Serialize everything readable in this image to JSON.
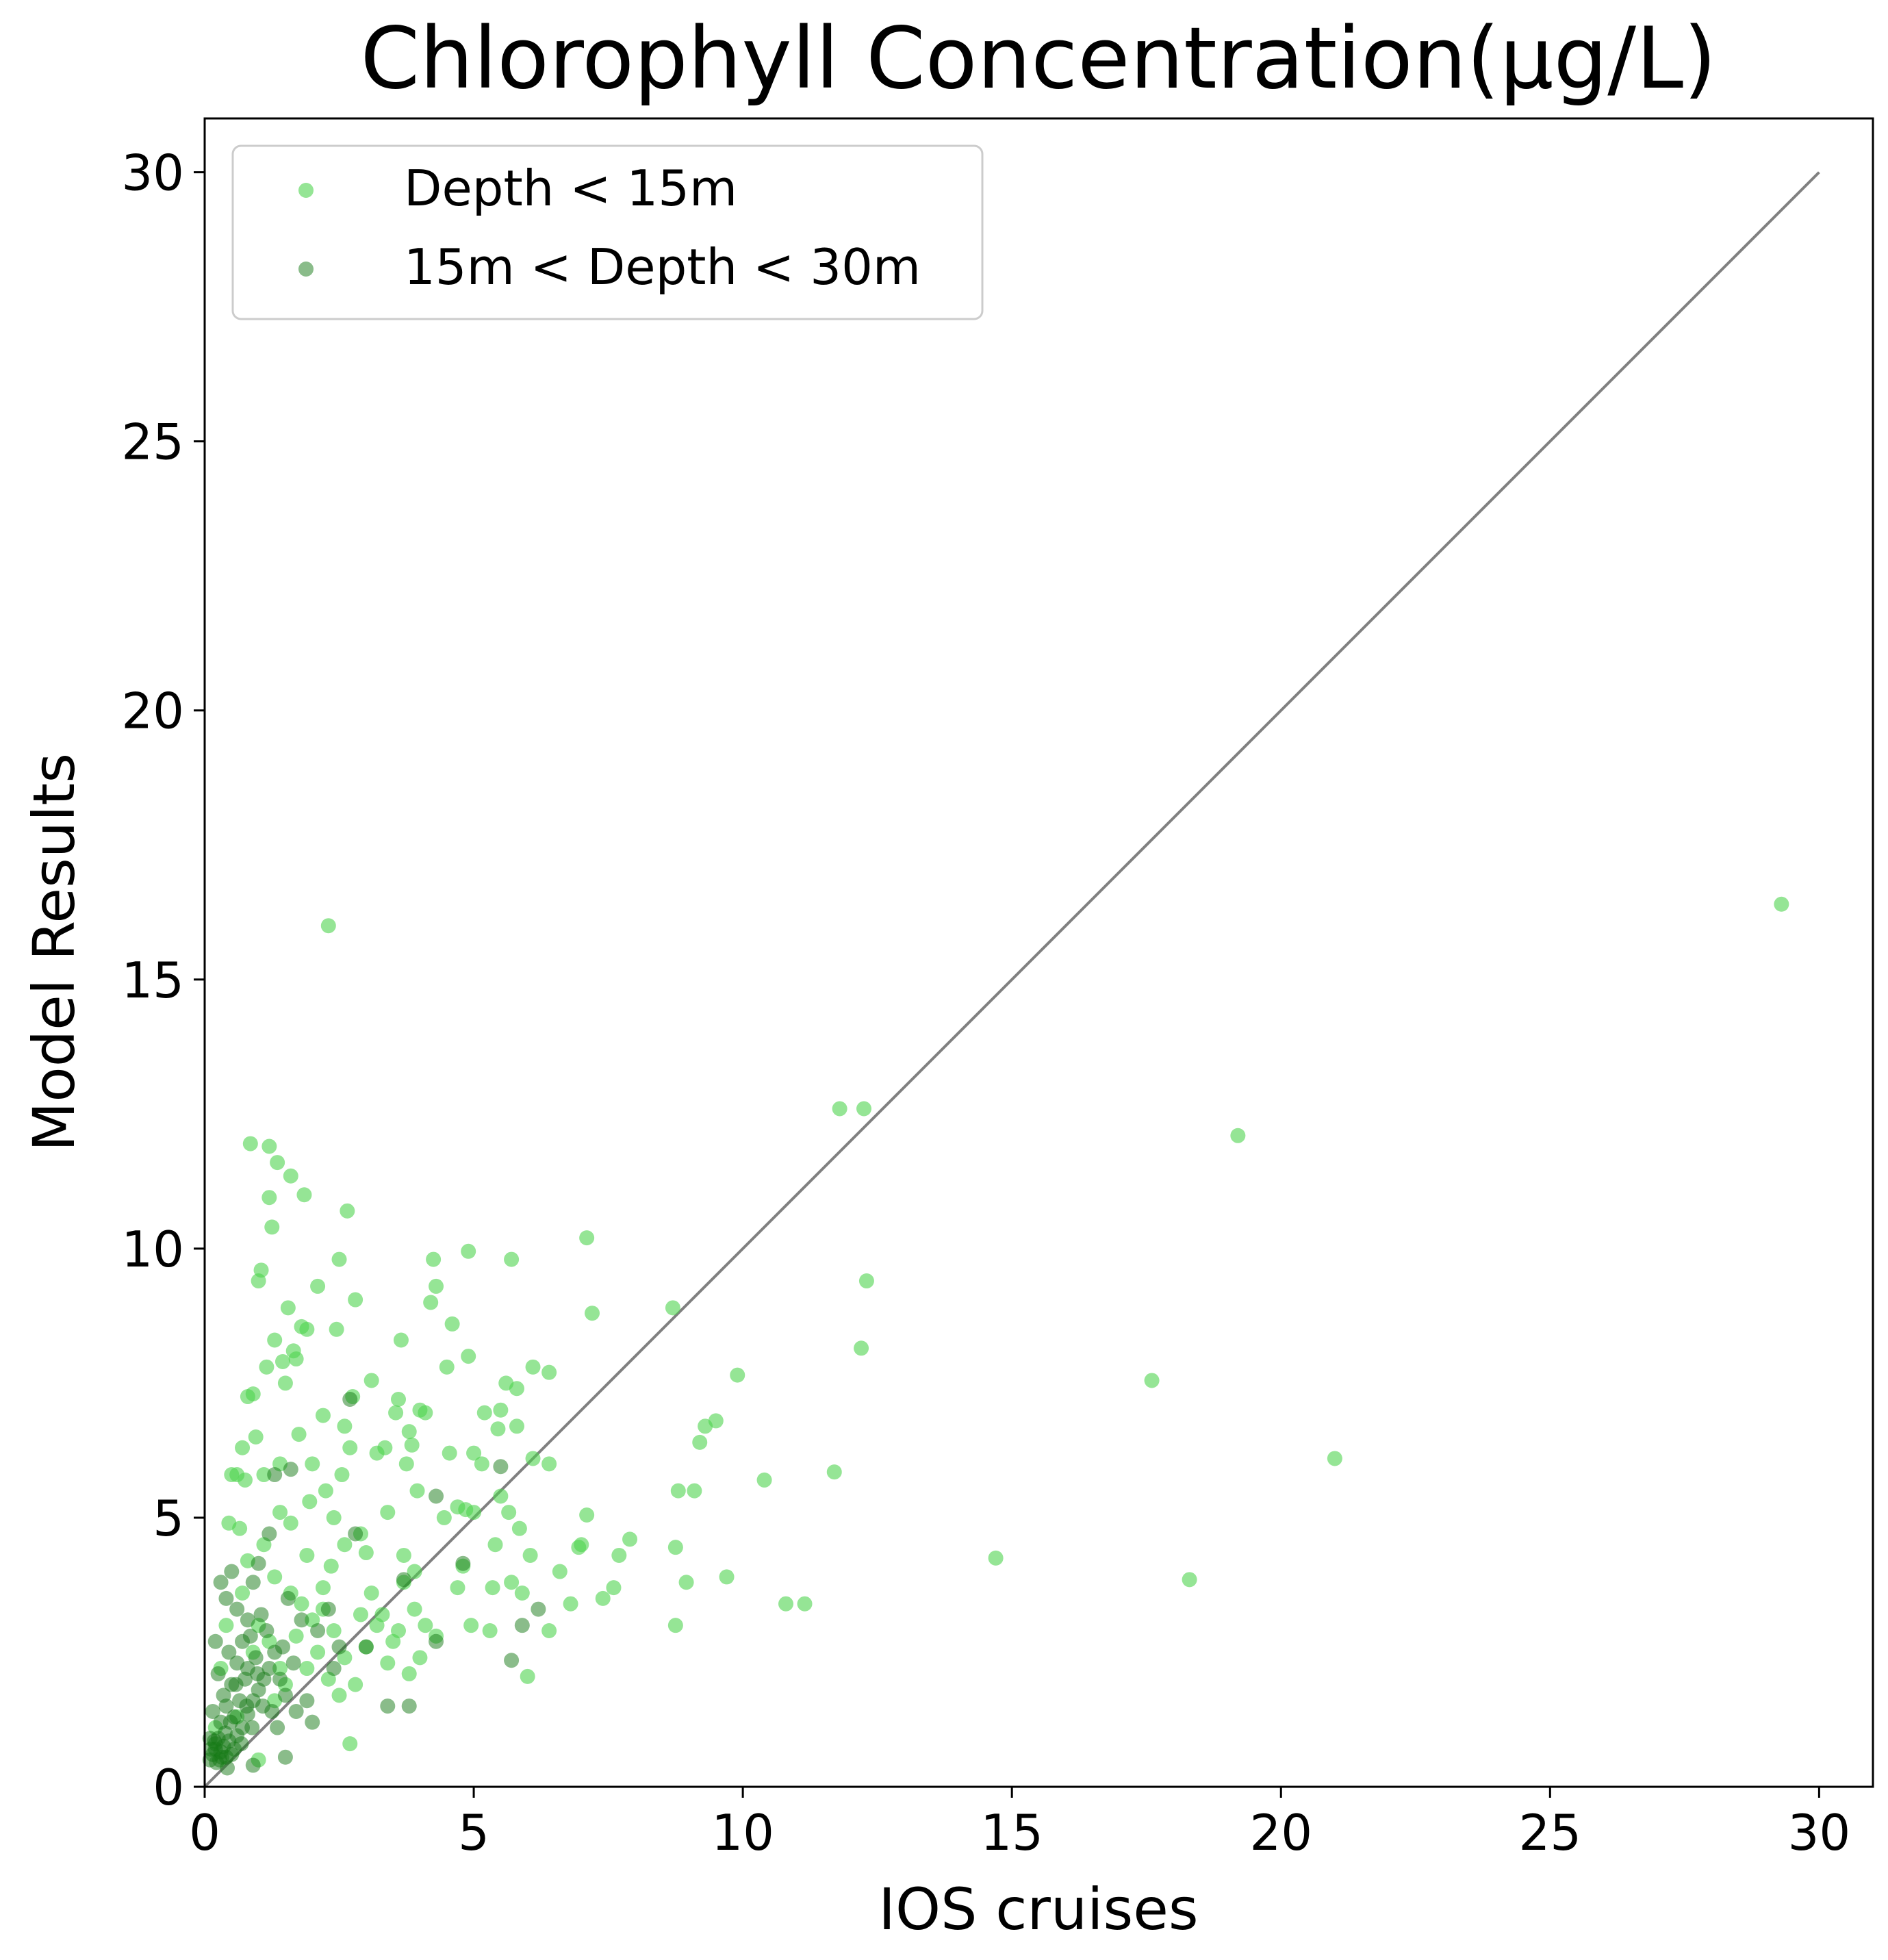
{
  "chart_data": {
    "type": "scatter",
    "title": "Chlorophyll Concentration(μg/L)",
    "xlabel": "IOS cruises",
    "ylabel": "Model Results",
    "xlim": [
      0,
      31
    ],
    "ylim": [
      0,
      31
    ],
    "xticks": [
      0,
      5,
      10,
      15,
      20,
      25,
      30
    ],
    "yticks": [
      0,
      5,
      10,
      15,
      20,
      25,
      30
    ],
    "grid": false,
    "legend_position": "top-left",
    "reference_line": {
      "x": [
        0,
        30
      ],
      "y": [
        0,
        30
      ],
      "color": "#808080"
    },
    "series": [
      {
        "name": "Depth < 15m",
        "color": "#4fd44f",
        "alpha": 0.6,
        "points": [
          [
            29.3,
            16.4
          ],
          [
            21.0,
            6.1
          ],
          [
            19.2,
            12.1
          ],
          [
            18.3,
            3.85
          ],
          [
            17.6,
            7.55
          ],
          [
            14.7,
            4.25
          ],
          [
            12.3,
            9.4
          ],
          [
            12.25,
            12.6
          ],
          [
            12.2,
            8.15
          ],
          [
            11.8,
            12.6
          ],
          [
            11.7,
            5.85
          ],
          [
            11.15,
            3.4
          ],
          [
            10.8,
            3.4
          ],
          [
            10.4,
            5.7
          ],
          [
            9.9,
            7.65
          ],
          [
            9.7,
            3.9
          ],
          [
            9.5,
            6.8
          ],
          [
            9.3,
            6.7
          ],
          [
            9.2,
            6.4
          ],
          [
            9.1,
            5.5
          ],
          [
            8.95,
            3.8
          ],
          [
            8.8,
            5.5
          ],
          [
            8.75,
            4.45
          ],
          [
            8.75,
            3.0
          ],
          [
            8.7,
            8.9
          ],
          [
            7.9,
            4.6
          ],
          [
            7.7,
            4.3
          ],
          [
            7.6,
            3.7
          ],
          [
            7.4,
            3.5
          ],
          [
            7.2,
            8.8
          ],
          [
            7.1,
            10.2
          ],
          [
            7.1,
            5.05
          ],
          [
            7.0,
            4.5
          ],
          [
            6.95,
            4.45
          ],
          [
            6.8,
            3.4
          ],
          [
            6.6,
            4.0
          ],
          [
            6.4,
            7.7
          ],
          [
            6.4,
            6.0
          ],
          [
            6.4,
            2.9
          ],
          [
            6.1,
            7.8
          ],
          [
            6.1,
            6.1
          ],
          [
            6.05,
            4.3
          ],
          [
            6.0,
            2.05
          ],
          [
            5.9,
            3.6
          ],
          [
            5.85,
            4.8
          ],
          [
            5.8,
            6.7
          ],
          [
            5.8,
            7.4
          ],
          [
            5.7,
            9.8
          ],
          [
            5.7,
            3.8
          ],
          [
            5.65,
            5.1
          ],
          [
            5.6,
            7.5
          ],
          [
            5.5,
            7.0
          ],
          [
            5.5,
            5.4
          ],
          [
            5.45,
            6.65
          ],
          [
            5.4,
            4.5
          ],
          [
            5.35,
            3.7
          ],
          [
            5.3,
            2.9
          ],
          [
            5.2,
            6.95
          ],
          [
            5.15,
            6.0
          ],
          [
            5.0,
            5.1
          ],
          [
            5.0,
            6.2
          ],
          [
            4.95,
            3.0
          ],
          [
            4.9,
            9.95
          ],
          [
            4.9,
            8.0
          ],
          [
            4.85,
            5.15
          ],
          [
            4.8,
            4.1
          ],
          [
            4.7,
            3.7
          ],
          [
            4.7,
            5.2
          ],
          [
            4.6,
            8.6
          ],
          [
            4.55,
            6.2
          ],
          [
            4.5,
            7.8
          ],
          [
            4.45,
            5.0
          ],
          [
            4.3,
            9.3
          ],
          [
            4.25,
            9.8
          ],
          [
            4.2,
            9.0
          ],
          [
            4.1,
            6.95
          ],
          [
            4.0,
            7.0
          ],
          [
            3.95,
            5.5
          ],
          [
            3.9,
            4.0
          ],
          [
            3.85,
            6.35
          ],
          [
            3.8,
            6.6
          ],
          [
            3.75,
            6.0
          ],
          [
            3.7,
            3.8
          ],
          [
            3.65,
            8.3
          ],
          [
            3.6,
            7.2
          ],
          [
            3.55,
            6.95
          ],
          [
            3.4,
            5.1
          ],
          [
            3.35,
            6.3
          ],
          [
            3.2,
            6.2
          ],
          [
            3.1,
            7.55
          ],
          [
            3.0,
            4.35
          ],
          [
            2.9,
            3.2
          ],
          [
            2.8,
            9.05
          ],
          [
            2.75,
            7.25
          ],
          [
            2.7,
            6.3
          ],
          [
            2.65,
            10.7
          ],
          [
            2.6,
            6.7
          ],
          [
            2.55,
            5.8
          ],
          [
            2.5,
            9.8
          ],
          [
            2.45,
            8.5
          ],
          [
            2.4,
            5.0
          ],
          [
            2.35,
            4.1
          ],
          [
            2.3,
            16.0
          ],
          [
            2.25,
            5.5
          ],
          [
            2.2,
            6.9
          ],
          [
            2.1,
            9.3
          ],
          [
            2.0,
            6.0
          ],
          [
            1.95,
            5.3
          ],
          [
            1.9,
            8.5
          ],
          [
            1.85,
            11.0
          ],
          [
            1.8,
            8.55
          ],
          [
            1.75,
            6.55
          ],
          [
            1.7,
            7.95
          ],
          [
            1.65,
            8.1
          ],
          [
            1.6,
            11.35
          ],
          [
            1.55,
            8.9
          ],
          [
            1.5,
            7.5
          ],
          [
            1.45,
            7.9
          ],
          [
            1.4,
            5.1
          ],
          [
            1.35,
            11.6
          ],
          [
            1.3,
            8.3
          ],
          [
            1.25,
            10.4
          ],
          [
            1.2,
            11.9
          ],
          [
            1.2,
            10.95
          ],
          [
            1.15,
            7.8
          ],
          [
            1.1,
            5.8
          ],
          [
            1.05,
            9.6
          ],
          [
            1.0,
            9.4
          ],
          [
            0.95,
            6.5
          ],
          [
            0.9,
            7.3
          ],
          [
            0.85,
            11.95
          ],
          [
            0.8,
            7.25
          ],
          [
            0.75,
            5.7
          ],
          [
            0.7,
            6.3
          ],
          [
            0.65,
            4.8
          ],
          [
            0.6,
            5.8
          ],
          [
            0.5,
            5.8
          ],
          [
            0.45,
            4.9
          ],
          [
            1.6,
            3.6
          ],
          [
            1.8,
            3.4
          ],
          [
            2.0,
            3.1
          ],
          [
            2.2,
            3.7
          ],
          [
            2.4,
            2.9
          ],
          [
            2.6,
            2.4
          ],
          [
            2.8,
            1.9
          ],
          [
            3.0,
            2.6
          ],
          [
            3.2,
            3.0
          ],
          [
            3.4,
            2.3
          ],
          [
            3.6,
            2.9
          ],
          [
            3.8,
            2.1
          ],
          [
            4.0,
            2.4
          ],
          [
            1.4,
            2.2
          ],
          [
            1.2,
            2.7
          ],
          [
            1.0,
            3.0
          ],
          [
            0.9,
            2.5
          ],
          [
            1.3,
            1.6
          ],
          [
            1.5,
            1.9
          ],
          [
            1.7,
            2.8
          ],
          [
            1.9,
            2.2
          ],
          [
            2.1,
            2.5
          ],
          [
            2.3,
            2.0
          ],
          [
            2.5,
            1.7
          ],
          [
            0.8,
            4.2
          ],
          [
            1.1,
            4.5
          ],
          [
            1.3,
            3.9
          ],
          [
            0.7,
            3.6
          ],
          [
            2.7,
            0.8
          ],
          [
            1.0,
            0.5
          ],
          [
            0.6,
            1.3
          ],
          [
            2.2,
            3.3
          ],
          [
            2.6,
            4.5
          ],
          [
            2.9,
            4.7
          ],
          [
            3.1,
            3.6
          ],
          [
            3.3,
            3.2
          ],
          [
            3.5,
            2.7
          ],
          [
            3.7,
            4.3
          ],
          [
            3.9,
            3.3
          ],
          [
            4.1,
            3.0
          ],
          [
            4.3,
            2.8
          ],
          [
            1.6,
            4.9
          ],
          [
            1.4,
            6.0
          ],
          [
            1.9,
            4.3
          ],
          [
            0.4,
            3.0
          ],
          [
            0.3,
            2.2
          ],
          [
            0.2,
            1.1
          ]
        ]
      },
      {
        "name": "15m < Depth < 30m",
        "color": "#157a15",
        "alpha": 0.5,
        "points": [
          [
            5.5,
            5.95
          ],
          [
            6.2,
            3.3
          ],
          [
            5.9,
            3.0
          ],
          [
            5.7,
            2.35
          ],
          [
            4.8,
            4.15
          ],
          [
            4.3,
            5.4
          ],
          [
            4.3,
            2.7
          ],
          [
            3.8,
            1.5
          ],
          [
            3.7,
            3.85
          ],
          [
            3.4,
            1.5
          ],
          [
            2.7,
            7.2
          ],
          [
            2.4,
            2.2
          ],
          [
            2.0,
            1.2
          ],
          [
            1.6,
            5.9
          ],
          [
            1.5,
            0.55
          ],
          [
            1.8,
            3.1
          ],
          [
            2.3,
            3.3
          ],
          [
            2.8,
            4.7
          ],
          [
            3.0,
            2.6
          ],
          [
            1.3,
            5.8
          ],
          [
            1.2,
            4.7
          ],
          [
            1.0,
            4.15
          ],
          [
            0.9,
            3.8
          ],
          [
            0.8,
            3.1
          ],
          [
            0.7,
            2.7
          ],
          [
            0.6,
            2.3
          ],
          [
            0.5,
            1.9
          ],
          [
            0.4,
            1.5
          ],
          [
            0.3,
            1.2
          ],
          [
            0.25,
            0.9
          ],
          [
            0.2,
            0.7
          ],
          [
            0.15,
            0.6
          ],
          [
            0.1,
            0.5
          ],
          [
            0.2,
            0.8
          ],
          [
            0.3,
            0.65
          ],
          [
            0.35,
            0.75
          ],
          [
            0.4,
            0.55
          ],
          [
            0.45,
            0.85
          ],
          [
            0.5,
            0.6
          ],
          [
            0.55,
            0.7
          ],
          [
            0.6,
            0.95
          ],
          [
            0.7,
            1.1
          ],
          [
            0.8,
            1.35
          ],
          [
            0.9,
            1.6
          ],
          [
            1.0,
            1.8
          ],
          [
            1.1,
            2.0
          ],
          [
            1.2,
            2.2
          ],
          [
            1.3,
            2.5
          ],
          [
            1.4,
            2.0
          ],
          [
            1.5,
            1.7
          ],
          [
            1.7,
            1.4
          ],
          [
            1.9,
            1.6
          ],
          [
            0.9,
            0.4
          ],
          [
            0.8,
            2.2
          ],
          [
            0.6,
            3.3
          ],
          [
            0.5,
            4.0
          ],
          [
            0.4,
            3.5
          ],
          [
            0.3,
            3.8
          ],
          [
            0.2,
            2.7
          ],
          [
            0.25,
            2.1
          ],
          [
            0.35,
            1.7
          ],
          [
            0.45,
            2.5
          ],
          [
            0.55,
            1.3
          ],
          [
            0.65,
            1.6
          ],
          [
            0.75,
            2.0
          ],
          [
            0.85,
            2.8
          ],
          [
            0.95,
            2.4
          ],
          [
            1.05,
            3.2
          ],
          [
            1.15,
            2.9
          ],
          [
            1.25,
            1.4
          ],
          [
            1.35,
            1.1
          ],
          [
            1.45,
            2.6
          ],
          [
            1.55,
            3.5
          ],
          [
            1.65,
            2.3
          ],
          [
            2.1,
            2.9
          ],
          [
            2.5,
            2.6
          ],
          [
            0.15,
            1.4
          ],
          [
            0.1,
            0.9
          ],
          [
            0.12,
            0.7
          ],
          [
            0.28,
            0.5
          ],
          [
            0.38,
            1.0
          ],
          [
            0.48,
            1.2
          ],
          [
            0.58,
            1.9
          ],
          [
            0.68,
            0.8
          ],
          [
            0.78,
            1.5
          ],
          [
            0.88,
            1.1
          ],
          [
            0.98,
            2.1
          ],
          [
            1.08,
            1.5
          ],
          [
            0.42,
            0.35
          ],
          [
            0.22,
            0.45
          ],
          [
            0.32,
            0.55
          ],
          [
            0.18,
            0.85
          ]
        ]
      }
    ]
  }
}
